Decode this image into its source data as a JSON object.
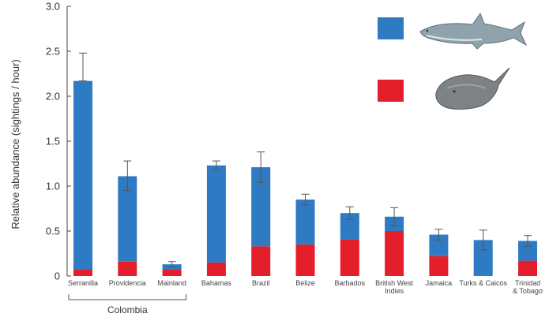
{
  "chart_data": {
    "type": "bar",
    "stacked": true,
    "title": "",
    "xlabel": "",
    "ylabel": "Relative abundance (sightings / hour)",
    "ylim": [
      0,
      3.0
    ],
    "yticks": [
      0,
      0.5,
      1.0,
      1.5,
      2.0,
      2.5,
      3.0
    ],
    "ytick_labels": [
      "0",
      "0.5",
      "1.0",
      "1.5",
      "2.0",
      "2.5",
      "3.0"
    ],
    "grid": false,
    "legend_placement": "top-right",
    "categories": [
      [
        "Serranilla"
      ],
      [
        "Providencia"
      ],
      [
        "Mainland"
      ],
      [
        "Bahamas"
      ],
      [
        "Brazil"
      ],
      [
        "Belize"
      ],
      [
        "Barbados"
      ],
      [
        "British West",
        "Indies"
      ],
      [
        "Jamaica"
      ],
      [
        "Turks & Caicos"
      ],
      [
        "Trinidad",
        "& Tobago"
      ]
    ],
    "group_label": "Colombia",
    "group_range": [
      0,
      2
    ],
    "series": [
      {
        "icon": "ray-icon",
        "color": "#e41e2b",
        "values": [
          0.07,
          0.16,
          0.07,
          0.15,
          0.33,
          0.35,
          0.41,
          0.5,
          0.22,
          0.0,
          0.17
        ]
      },
      {
        "icon": "shark-icon",
        "color": "#2e7bc4",
        "values": [
          2.1,
          0.95,
          0.06,
          1.08,
          0.88,
          0.5,
          0.29,
          0.16,
          0.24,
          0.4,
          0.22
        ]
      }
    ],
    "totals": [
      2.17,
      1.11,
      0.13,
      1.23,
      1.21,
      0.85,
      0.7,
      0.66,
      0.46,
      0.4,
      0.39
    ],
    "error_upper": [
      2.48,
      1.28,
      0.16,
      1.28,
      1.38,
      0.91,
      0.77,
      0.76,
      0.52,
      0.51,
      0.45
    ],
    "error_lower": [
      2.17,
      0.95,
      0.1,
      1.18,
      1.04,
      0.79,
      0.63,
      0.56,
      0.4,
      0.29,
      0.33
    ]
  }
}
